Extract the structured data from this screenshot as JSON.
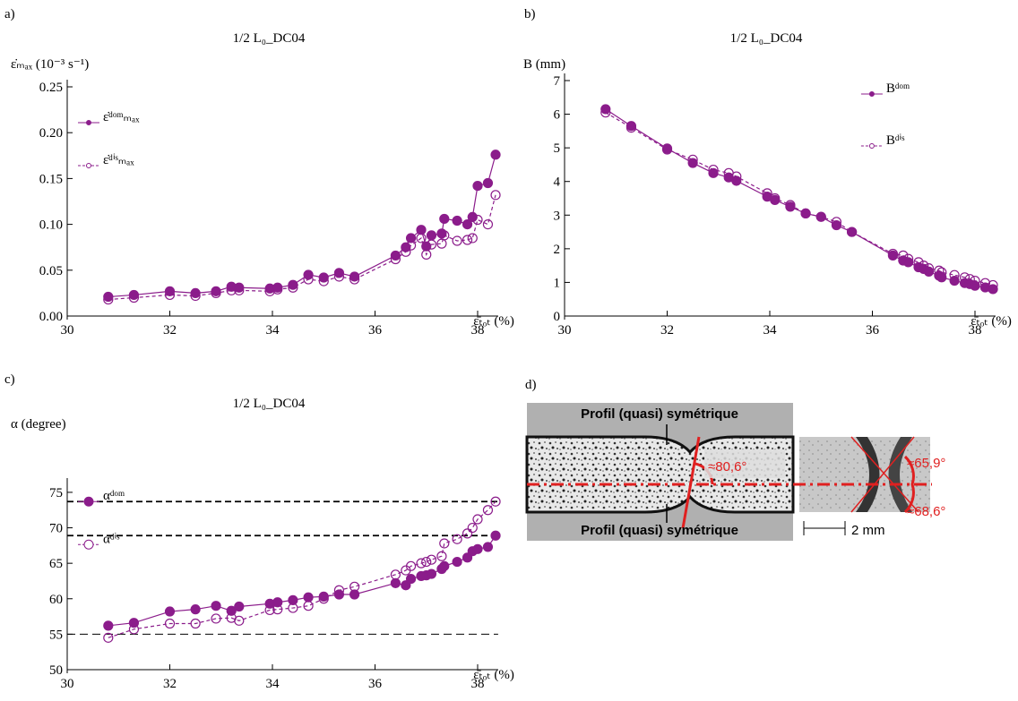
{
  "chart_data": [
    {
      "type": "line",
      "label": "a)",
      "title": "1/2 L₀_DC04",
      "y_label": "ε̇ₘₐₓ (10⁻³ s⁻¹)",
      "x_label": "ε̄ₜₒₜ (%)",
      "xlim": [
        30,
        38.4
      ],
      "xticks": [
        30,
        32,
        34,
        36,
        38
      ],
      "ylim": [
        0,
        0.25
      ],
      "yticks": [
        {
          "value": 0,
          "label": "0.00"
        },
        {
          "value": 0.05,
          "label": "0.05"
        },
        {
          "value": 0.1,
          "label": "0.10"
        },
        {
          "value": 0.15,
          "label": "0.15"
        },
        {
          "value": 0.2,
          "label": "0.20"
        },
        {
          "value": 0.25,
          "label": "0.25"
        }
      ],
      "legend": "upper left",
      "x": [
        30.8,
        31.3,
        32.0,
        32.5,
        32.9,
        33.2,
        33.35,
        33.95,
        34.1,
        34.4,
        34.7,
        35.0,
        35.3,
        35.6,
        36.4,
        36.6,
        36.7,
        36.9,
        37.0,
        37.1,
        37.3,
        37.35,
        37.6,
        37.8,
        37.9,
        38.0,
        38.2,
        38.35
      ],
      "series": [
        {
          "name": "ε̇ᵈᵒᵐₘₐₓ",
          "color": "#8b1c8b",
          "marker": "filled",
          "dashed": false,
          "values": [
            0.021,
            0.023,
            0.027,
            0.025,
            0.027,
            0.032,
            0.031,
            0.03,
            0.031,
            0.034,
            0.045,
            0.042,
            0.047,
            0.043,
            0.066,
            0.075,
            0.085,
            0.094,
            0.076,
            0.088,
            0.09,
            0.106,
            0.104,
            0.1,
            0.108,
            0.142,
            0.145,
            0.176
          ]
        },
        {
          "name": "ε̇ᵈⁱˢₘₐₓ",
          "color": "#8b1c8b",
          "marker": "open",
          "dashed": true,
          "values": [
            0.018,
            0.02,
            0.023,
            0.022,
            0.025,
            0.028,
            0.028,
            0.027,
            0.029,
            0.031,
            0.04,
            0.038,
            0.043,
            0.04,
            0.062,
            0.07,
            0.077,
            0.085,
            0.067,
            0.078,
            0.079,
            0.088,
            0.082,
            0.083,
            0.085,
            0.105,
            0.1,
            0.132
          ]
        }
      ]
    },
    {
      "type": "line",
      "label": "b)",
      "title": "1/2 L₀_DC04",
      "y_label": "B (mm)",
      "x_label": "ε̄ₜₒₜ (%)",
      "xlim": [
        30,
        38.4
      ],
      "xticks": [
        30,
        32,
        34,
        36,
        38
      ],
      "ylim": [
        0,
        7
      ],
      "yticks": [
        0,
        1,
        2,
        3,
        4,
        5,
        6,
        7
      ],
      "legend": "upper right",
      "x": [
        30.8,
        31.3,
        32.0,
        32.5,
        32.9,
        33.2,
        33.35,
        33.95,
        34.1,
        34.4,
        34.7,
        35.0,
        35.3,
        35.6,
        36.4,
        36.6,
        36.7,
        36.9,
        37.0,
        37.1,
        37.3,
        37.35,
        37.6,
        37.8,
        37.9,
        38.0,
        38.2,
        38.35
      ],
      "series": [
        {
          "name": "Bᵈᵒᵐ",
          "color": "#8b1c8b",
          "marker": "filled",
          "dashed": false,
          "values": [
            6.15,
            5.65,
            4.98,
            4.55,
            4.25,
            4.12,
            4.02,
            3.55,
            3.45,
            3.25,
            3.05,
            2.95,
            2.7,
            2.5,
            1.8,
            1.65,
            1.6,
            1.45,
            1.4,
            1.32,
            1.2,
            1.15,
            1.05,
            0.98,
            0.95,
            0.9,
            0.85,
            0.8
          ]
        },
        {
          "name": "Bᵈⁱˢ",
          "color": "#8b1c8b",
          "marker": "open",
          "dashed": true,
          "values": [
            6.05,
            5.6,
            4.95,
            4.65,
            4.35,
            4.25,
            4.15,
            3.65,
            3.5,
            3.3,
            3.05,
            2.95,
            2.8,
            2.5,
            1.85,
            1.8,
            1.7,
            1.6,
            1.5,
            1.42,
            1.35,
            1.3,
            1.22,
            1.15,
            1.1,
            1.05,
            0.98,
            0.92
          ]
        }
      ]
    },
    {
      "type": "line",
      "label": "c)",
      "title": "1/2 L₀_DC04",
      "y_label": "α (degree)",
      "x_label": "ε̄ₜₒₜ (%)",
      "xlim": [
        30,
        38.4
      ],
      "xticks": [
        30,
        32,
        34,
        36,
        38
      ],
      "ylim": [
        50,
        76
      ],
      "yticks": [
        50,
        55,
        60,
        65,
        70,
        75
      ],
      "legend": "left",
      "hlines": [
        73.7,
        68.9,
        55
      ],
      "x": [
        30.8,
        31.3,
        32.0,
        32.5,
        32.9,
        33.2,
        33.35,
        33.95,
        34.1,
        34.4,
        34.7,
        35.0,
        35.3,
        35.6,
        36.4,
        36.6,
        36.7,
        36.9,
        37.0,
        37.1,
        37.3,
        37.35,
        37.6,
        37.8,
        37.9,
        38.0,
        38.2,
        38.35
      ],
      "series": [
        {
          "name": "αᵈᵒᵐ",
          "color": "#8b1c8b",
          "marker": "filled",
          "dashed": false,
          "values": [
            56.2,
            56.6,
            58.2,
            58.5,
            59.0,
            58.3,
            58.9,
            59.3,
            59.5,
            59.8,
            60.2,
            60.3,
            60.6,
            60.6,
            62.2,
            61.9,
            62.8,
            63.2,
            63.3,
            63.5,
            64.2,
            64.6,
            65.2,
            65.8,
            66.7,
            67.0,
            67.3,
            68.9
          ]
        },
        {
          "name": "αᵈⁱˢ",
          "color": "#8b1c8b",
          "marker": "open",
          "dashed": true,
          "values": [
            54.5,
            55.7,
            56.5,
            56.5,
            57.2,
            57.3,
            56.9,
            58.4,
            58.5,
            58.7,
            59.0,
            60.0,
            61.2,
            61.7,
            63.4,
            64.0,
            64.6,
            65.0,
            65.2,
            65.5,
            66.0,
            67.8,
            68.4,
            69.2,
            70.0,
            71.2,
            72.5,
            73.7
          ]
        }
      ]
    }
  ],
  "panel_d": {
    "label": "d)",
    "profile_top": "Profil (quasi) symétrique",
    "profile_bottom": "Profil (quasi) symétrique",
    "angle_left": "≈80,6°",
    "angle_upper": "≈65,9°",
    "angle_lower": "≈68,6°",
    "scale": "2 mm"
  }
}
